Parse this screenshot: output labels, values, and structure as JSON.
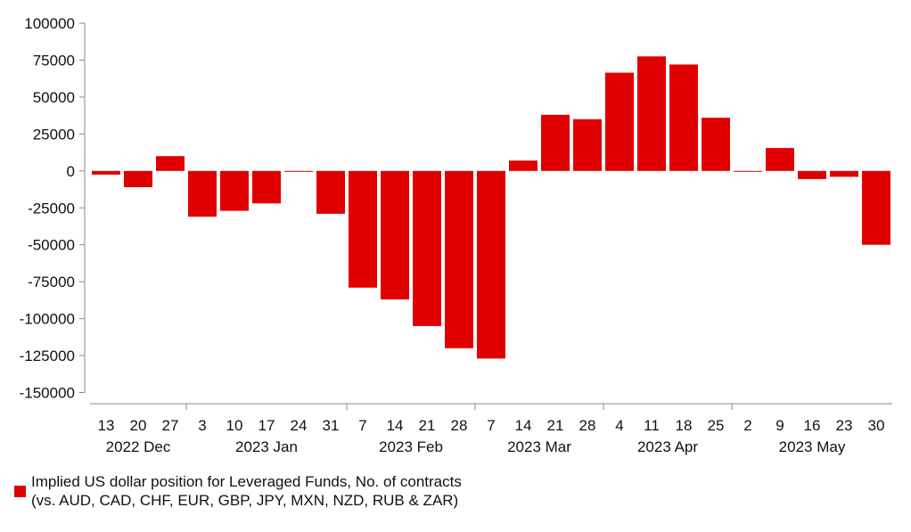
{
  "chart_data": {
    "type": "bar",
    "categories": [
      "13",
      "20",
      "27",
      "3",
      "10",
      "17",
      "24",
      "31",
      "7",
      "14",
      "21",
      "28",
      "7",
      "14",
      "21",
      "28",
      "4",
      "11",
      "18",
      "25",
      "2",
      "9",
      "16",
      "23",
      "30"
    ],
    "month_groups": [
      {
        "label": "2022 Dec",
        "start": 0,
        "end": 2
      },
      {
        "label": "2023 Jan",
        "start": 3,
        "end": 7
      },
      {
        "label": "2023 Feb",
        "start": 8,
        "end": 11
      },
      {
        "label": "2023 Mar",
        "start": 12,
        "end": 15
      },
      {
        "label": "2023 Apr",
        "start": 16,
        "end": 19
      },
      {
        "label": "2023 May",
        "start": 20,
        "end": 24
      }
    ],
    "series": [
      {
        "name": "Implied US dollar position for Leveraged Funds, No. of contracts",
        "values": [
          -2500,
          -11000,
          10000,
          -31000,
          -27000,
          -22000,
          -500,
          -29000,
          -79000,
          -87000,
          -105000,
          -120000,
          -127000,
          7000,
          38000,
          35000,
          66500,
          77500,
          72000,
          36000,
          -500,
          15500,
          -5500,
          -4000,
          -50000
        ]
      }
    ],
    "yticks": [
      "100000",
      "75000",
      "50000",
      "25000",
      "0",
      "-25000",
      "-50000",
      "-75000",
      "-100000",
      "-125000",
      "-150000"
    ],
    "ylim": [
      -150000,
      100000
    ],
    "grid": false,
    "colors": {
      "bar": "#e10000",
      "axis": "#888888"
    },
    "legend": {
      "position": "bottom-left",
      "line1": "Implied US dollar position for Leveraged Funds, No. of contracts",
      "line2": "(vs. AUD, CAD, CHF, EUR, GBP, JPY, MXN, NZD, RUB & ZAR)"
    }
  }
}
